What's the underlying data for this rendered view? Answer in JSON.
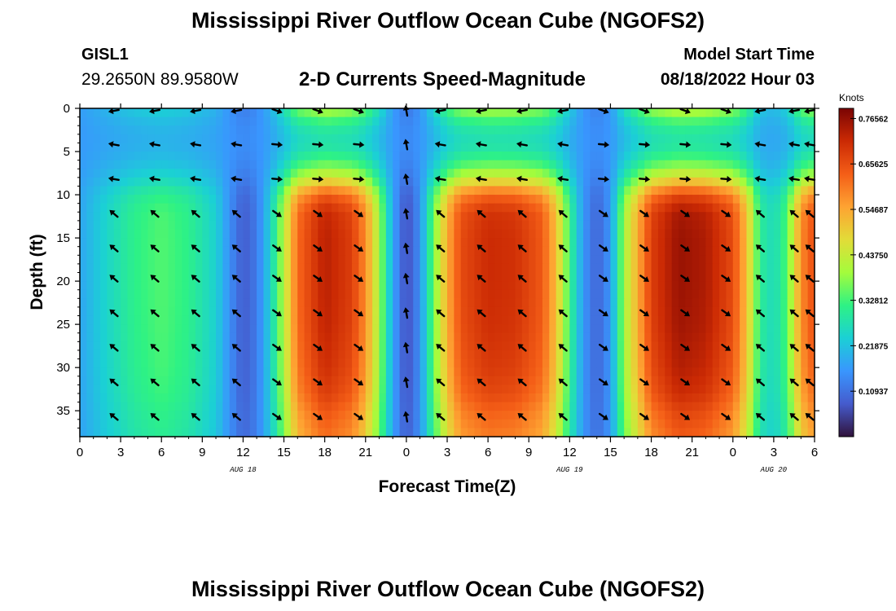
{
  "header": {
    "title": "Mississippi River Outflow Ocean Cube (NGOFS2)",
    "station_id": "GISL1",
    "coordinates": "29.2650N  89.9580W",
    "subtitle": "2-D Currents Speed-Magnitude",
    "model_start_label": "Model Start Time",
    "model_start_value": "08/18/2022 Hour 03"
  },
  "footer": {
    "title": "Mississippi River Outflow Ocean Cube (NGOFS2)"
  },
  "chart_data": {
    "type": "heatmap",
    "title": "2-D Currents Speed-Magnitude",
    "xlabel": "Forecast Time(Z)",
    "ylabel": "Depth (ft)",
    "x_range_hours": [
      0,
      54
    ],
    "y_range_ft": [
      0,
      38
    ],
    "x_tick_labels": [
      "0",
      "3",
      "6",
      "9",
      "12",
      "15",
      "18",
      "21",
      "0",
      "3",
      "6",
      "9",
      "12",
      "15",
      "18",
      "21",
      "0",
      "3",
      "6"
    ],
    "y_ticks": [
      0,
      5,
      10,
      15,
      20,
      25,
      30,
      35
    ],
    "date_labels": [
      {
        "label": "AUG 18",
        "hour": 12
      },
      {
        "label": "AUG 19",
        "hour": 36
      },
      {
        "label": "AUG 20",
        "hour": 51
      }
    ],
    "colorbar": {
      "unit": "Knots",
      "min": 0.0,
      "max": 0.79,
      "tick_values": [
        0.10937,
        0.21875,
        0.32812,
        0.4375,
        0.54687,
        0.65625,
        0.76562
      ],
      "tick_labels": [
        "0.10937",
        "0.21875",
        "0.32812",
        "0.43750",
        "0.54687",
        "0.65625",
        "0.76562"
      ]
    },
    "speed_profile": {
      "hours": [
        0,
        2,
        4,
        6,
        8,
        10,
        11,
        12,
        13,
        14,
        15,
        16,
        18,
        20,
        21,
        22,
        23,
        24,
        25,
        26,
        27,
        28,
        30,
        32,
        34,
        35,
        36,
        37,
        38,
        39,
        40,
        42,
        44,
        46,
        48,
        49,
        50,
        51,
        52,
        53,
        54
      ],
      "knots": [
        0.18,
        0.25,
        0.31,
        0.34,
        0.31,
        0.24,
        0.15,
        0.08,
        0.12,
        0.24,
        0.42,
        0.62,
        0.73,
        0.68,
        0.58,
        0.4,
        0.18,
        0.06,
        0.15,
        0.36,
        0.54,
        0.66,
        0.71,
        0.7,
        0.64,
        0.52,
        0.32,
        0.16,
        0.09,
        0.16,
        0.4,
        0.68,
        0.76,
        0.74,
        0.66,
        0.52,
        0.3,
        0.26,
        0.34,
        0.58,
        0.66
      ]
    },
    "depth_profile": {
      "depth_ft": [
        0,
        2,
        4,
        6,
        8,
        10,
        12,
        15,
        20,
        25,
        30,
        33,
        35,
        38
      ],
      "factor": [
        0.45,
        0.25,
        0.2,
        0.3,
        0.52,
        0.85,
        0.98,
        1.0,
        1.0,
        0.99,
        0.96,
        0.92,
        0.86,
        0.8
      ]
    },
    "arrow_depths_ft": [
      0,
      4,
      8,
      12,
      16,
      19.5,
      23.5,
      27.5,
      31.5,
      35.5
    ],
    "arrow_hours": [
      2.5,
      5.5,
      8.5,
      11.5,
      14.5,
      17.5,
      20.5,
      24,
      26.5,
      29.5,
      32.5,
      35.5,
      38.5,
      41.5,
      44.5,
      47.5,
      50,
      52.5,
      54
    ]
  }
}
